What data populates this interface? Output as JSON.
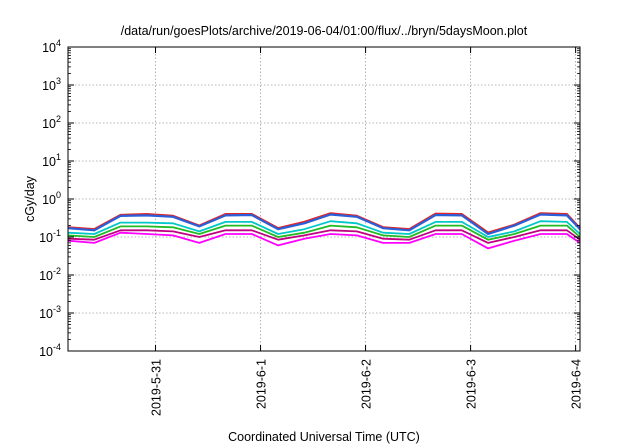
{
  "chart_data": {
    "type": "line",
    "title": "/data/run/goesPlots/archive/2019-06-04/01:00/flux/../bryn/5daysMoon.plot",
    "xlabel": "Coordinated Universal Time (UTC)",
    "ylabel": "cGy/day",
    "xlim": [
      "2019-05-30T04:00",
      "2019-06-04T01:00"
    ],
    "ylim": [
      0.0001,
      10000
    ],
    "y_scale": "log",
    "grid": true,
    "x_ticks": [
      "2019-5-31",
      "2019-6-1",
      "2019-6-2",
      "2019-6-3",
      "2019-6-4"
    ],
    "x_tick_values": [
      "2019-05-31T00:00",
      "2019-06-01T00:00",
      "2019-06-02T00:00",
      "2019-06-03T00:00",
      "2019-06-04T00:00"
    ],
    "y_ticks": [
      {
        "base": "10",
        "exp": "-4"
      },
      {
        "base": "10",
        "exp": "-3"
      },
      {
        "base": "10",
        "exp": "-2"
      },
      {
        "base": "10",
        "exp": "-1"
      },
      {
        "base": "10",
        "exp": "0"
      },
      {
        "base": "10",
        "exp": "1"
      },
      {
        "base": "10",
        "exp": "2"
      },
      {
        "base": "10",
        "exp": "3"
      },
      {
        "base": "10",
        "exp": "4"
      }
    ],
    "y_tick_values": [
      0.0001,
      0.001,
      0.01,
      0.1,
      1,
      10,
      100,
      1000,
      10000
    ],
    "x": [
      "2019-05-30T04:00",
      "2019-05-30T10:00",
      "2019-05-30T16:00",
      "2019-05-30T22:00",
      "2019-05-31T04:00",
      "2019-05-31T10:00",
      "2019-05-31T16:00",
      "2019-05-31T22:00",
      "2019-06-01T04:00",
      "2019-06-01T10:00",
      "2019-06-01T16:00",
      "2019-06-01T22:00",
      "2019-06-02T04:00",
      "2019-06-02T10:00",
      "2019-06-02T16:00",
      "2019-06-02T22:00",
      "2019-06-03T04:00",
      "2019-06-03T10:00",
      "2019-06-03T16:00",
      "2019-06-03T22:00",
      "2019-06-04T01:00"
    ],
    "series": [
      {
        "color": "#e0252b",
        "values": [
          0.18,
          0.16,
          0.38,
          0.4,
          0.36,
          0.2,
          0.4,
          0.4,
          0.17,
          0.25,
          0.42,
          0.36,
          0.18,
          0.16,
          0.41,
          0.4,
          0.13,
          0.21,
          0.42,
          0.4,
          0.17
        ]
      },
      {
        "color": "#2a5fd8",
        "values": [
          0.17,
          0.15,
          0.36,
          0.37,
          0.34,
          0.19,
          0.37,
          0.38,
          0.16,
          0.23,
          0.39,
          0.34,
          0.17,
          0.15,
          0.38,
          0.37,
          0.12,
          0.2,
          0.39,
          0.37,
          0.16
        ]
      },
      {
        "color": "#00c8c8",
        "values": [
          0.13,
          0.12,
          0.24,
          0.24,
          0.23,
          0.14,
          0.25,
          0.25,
          0.12,
          0.16,
          0.26,
          0.23,
          0.13,
          0.12,
          0.25,
          0.25,
          0.1,
          0.14,
          0.26,
          0.25,
          0.12
        ]
      },
      {
        "color": "#22bb22",
        "values": [
          0.11,
          0.1,
          0.19,
          0.19,
          0.18,
          0.12,
          0.2,
          0.2,
          0.1,
          0.13,
          0.2,
          0.18,
          0.11,
          0.1,
          0.2,
          0.2,
          0.085,
          0.12,
          0.2,
          0.2,
          0.1
        ]
      },
      {
        "color": "#c00080",
        "values": [
          0.09,
          0.085,
          0.15,
          0.15,
          0.14,
          0.1,
          0.15,
          0.15,
          0.085,
          0.11,
          0.15,
          0.14,
          0.09,
          0.085,
          0.15,
          0.15,
          0.07,
          0.1,
          0.15,
          0.15,
          0.085
        ]
      },
      {
        "color": "#ff00ff",
        "values": [
          0.08,
          0.07,
          0.13,
          0.12,
          0.11,
          0.07,
          0.12,
          0.12,
          0.06,
          0.09,
          0.12,
          0.11,
          0.07,
          0.07,
          0.12,
          0.12,
          0.05,
          0.08,
          0.12,
          0.12,
          0.07
        ]
      }
    ]
  }
}
